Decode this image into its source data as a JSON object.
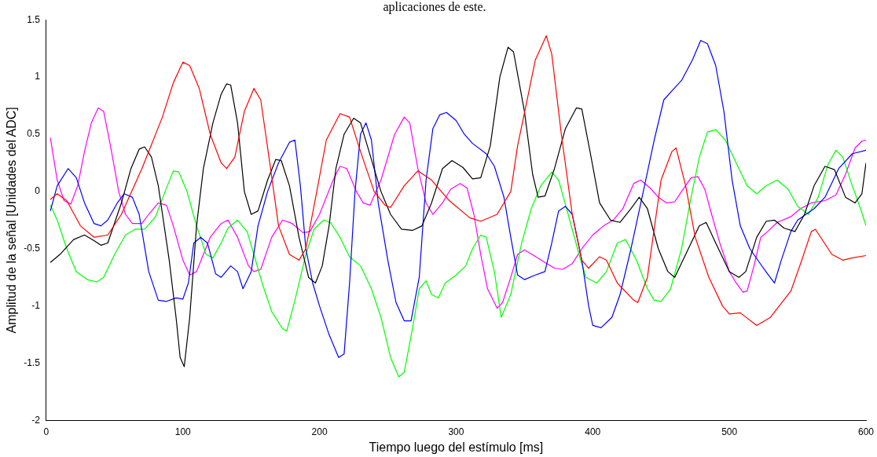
{
  "chart_data": {
    "type": "line",
    "title": "aplicaciones de este.",
    "xlabel": "Tiempo luego del estímulo [ms]",
    "ylabel": "Amplitud de la señal [Unidades del ADC]",
    "xlim": [
      0,
      600
    ],
    "xticks": [
      0,
      100,
      200,
      300,
      400,
      500,
      600
    ],
    "ylim": [
      -2,
      1.5
    ],
    "yticks": [
      -2,
      -1.5,
      -1,
      -0.5,
      0,
      0.5,
      1,
      1.5
    ],
    "grid": false,
    "legend": false,
    "marker": "none",
    "line_style": "solid",
    "series": [
      {
        "color": "#ff0000",
        "x": [
          3,
          8,
          15,
          25,
          35,
          45,
          55,
          70,
          85,
          93,
          100,
          105,
          112,
          120,
          128,
          132,
          138,
          145,
          152,
          157,
          163,
          170,
          178,
          185,
          190,
          198,
          205,
          215,
          222,
          230,
          240,
          248,
          252,
          262,
          272,
          282,
          295,
          310,
          318,
          330,
          340,
          345,
          352,
          358,
          366,
          370,
          377,
          385,
          392,
          397,
          405,
          410,
          418,
          430,
          433,
          440,
          450,
          458,
          461,
          468,
          475,
          485,
          495,
          500,
          508,
          520,
          530,
          545,
          553,
          560,
          563,
          575,
          583,
          590,
          600
        ],
        "values": [
          -0.07,
          -0.02,
          -0.08,
          -0.3,
          -0.4,
          -0.38,
          -0.2,
          0.2,
          0.65,
          0.95,
          1.13,
          1.1,
          0.9,
          0.5,
          0.25,
          0.2,
          0.3,
          0.7,
          0.9,
          0.8,
          0.3,
          -0.3,
          -0.55,
          -0.6,
          -0.5,
          0,
          0.45,
          0.68,
          0.65,
          0.35,
          0,
          -0.12,
          -0.14,
          0.05,
          0.18,
          0.1,
          -0.08,
          -0.23,
          -0.26,
          -0.2,
          0,
          0.4,
          0.8,
          1.15,
          1.36,
          1.2,
          0.5,
          -0.2,
          -0.6,
          -0.67,
          -0.57,
          -0.6,
          -0.8,
          -0.95,
          -0.97,
          -0.75,
          0.1,
          0.35,
          0.38,
          0.05,
          -0.4,
          -0.75,
          -1,
          -1.07,
          -1.06,
          -1.17,
          -1.1,
          -0.87,
          -0.6,
          -0.35,
          -0.33,
          -0.55,
          -0.6,
          -0.58,
          -0.56
        ]
      },
      {
        "color": "#000000",
        "x": [
          3,
          10,
          20,
          28,
          35,
          40,
          45,
          55,
          62,
          68,
          72,
          77,
          82,
          90,
          95,
          98,
          101,
          105,
          110,
          115,
          122,
          128,
          132,
          135,
          140,
          145,
          150,
          155,
          162,
          168,
          172,
          178,
          185,
          192,
          197,
          202,
          207,
          212,
          218,
          225,
          230,
          235,
          245,
          252,
          260,
          268,
          275,
          282,
          290,
          297,
          305,
          312,
          318,
          325,
          332,
          338,
          342,
          350,
          356,
          360,
          365,
          372,
          380,
          388,
          392,
          398,
          405,
          413,
          420,
          428,
          434,
          440,
          448,
          455,
          460,
          470,
          478,
          483,
          490,
          500,
          507,
          512,
          520,
          527,
          533,
          540,
          548,
          555,
          562,
          570,
          577,
          585,
          592,
          597,
          600
        ],
        "values": [
          -0.62,
          -0.55,
          -0.42,
          -0.38,
          -0.43,
          -0.47,
          -0.45,
          -0.1,
          0.2,
          0.37,
          0.39,
          0.3,
          0.05,
          -0.6,
          -1.1,
          -1.45,
          -1.53,
          -1.1,
          -0.3,
          0.2,
          0.6,
          0.85,
          0.94,
          0.93,
          0.6,
          0,
          -0.2,
          -0.17,
          0.1,
          0.28,
          0.27,
          0.05,
          -0.4,
          -0.75,
          -0.8,
          -0.65,
          -0.3,
          0.2,
          0.5,
          0.64,
          0.6,
          0.4,
          0,
          -0.2,
          -0.33,
          -0.34,
          -0.3,
          -0.1,
          0.2,
          0.27,
          0.21,
          0.11,
          0.12,
          0.4,
          1,
          1.26,
          1.22,
          0.7,
          0.15,
          -0.05,
          -0.04,
          0.2,
          0.55,
          0.73,
          0.72,
          0.35,
          -0.1,
          -0.25,
          -0.27,
          -0.15,
          -0.05,
          -0.15,
          -0.5,
          -0.7,
          -0.75,
          -0.5,
          -0.3,
          -0.27,
          -0.45,
          -0.7,
          -0.75,
          -0.7,
          -0.4,
          -0.26,
          -0.25,
          -0.32,
          -0.35,
          -0.2,
          0.05,
          0.22,
          0.19,
          -0.05,
          -0.1,
          -0.02,
          0.25
        ]
      },
      {
        "color": "#0000ff",
        "x": [
          3,
          8,
          16,
          22,
          28,
          35,
          40,
          45,
          52,
          57,
          63,
          68,
          75,
          82,
          88,
          95,
          100,
          104,
          108,
          113,
          118,
          124,
          128,
          135,
          140,
          144,
          150,
          155,
          162,
          170,
          178,
          182,
          186,
          190,
          195,
          200,
          207,
          214,
          218,
          222,
          226,
          230,
          234,
          238,
          243,
          250,
          256,
          262,
          267,
          273,
          278,
          283,
          288,
          293,
          300,
          306,
          312,
          322,
          328,
          335,
          340,
          345,
          350,
          358,
          365,
          370,
          375,
          380,
          385,
          392,
          397,
          400,
          406,
          414,
          420,
          428,
          437,
          445,
          452,
          458,
          465,
          473,
          479,
          484,
          490,
          496,
          502,
          508,
          515,
          522,
          528,
          533,
          538,
          545,
          550,
          556,
          562,
          570,
          580,
          590,
          600
        ],
        "values": [
          -0.17,
          0.05,
          0.2,
          0.12,
          -0.1,
          -0.28,
          -0.3,
          -0.25,
          -0.1,
          -0.02,
          -0.05,
          -0.2,
          -0.7,
          -0.95,
          -0.96,
          -0.93,
          -0.94,
          -0.8,
          -0.45,
          -0.4,
          -0.45,
          -0.72,
          -0.75,
          -0.65,
          -0.7,
          -0.85,
          -0.7,
          -0.3,
          0,
          0.25,
          0.43,
          0.45,
          0.05,
          -0.5,
          -0.8,
          -1,
          -1.25,
          -1.45,
          -1.42,
          -0.8,
          0,
          0.5,
          0.6,
          0.45,
          -0.1,
          -0.6,
          -0.97,
          -1.13,
          -1.13,
          -0.75,
          0.1,
          0.55,
          0.67,
          0.69,
          0.62,
          0.5,
          0.42,
          0.33,
          0.22,
          -0.05,
          -0.4,
          -0.73,
          -0.77,
          -0.73,
          -0.7,
          -0.45,
          -0.17,
          -0.13,
          -0.2,
          -0.6,
          -1,
          -1.17,
          -1.19,
          -1.1,
          -0.9,
          -0.5,
          0,
          0.45,
          0.8,
          0.88,
          0.97,
          1.15,
          1.32,
          1.29,
          1.1,
          0.7,
          0.1,
          -0.3,
          -0.5,
          -0.62,
          -0.72,
          -0.8,
          -0.6,
          -0.35,
          -0.25,
          -0.2,
          -0.15,
          -0.05,
          0.2,
          0.33,
          0.36
        ]
      },
      {
        "color": "#00ff00",
        "x": [
          3,
          8,
          15,
          22,
          30,
          37,
          42,
          50,
          58,
          65,
          72,
          80,
          87,
          93,
          97,
          103,
          110,
          117,
          122,
          128,
          133,
          140,
          147,
          152,
          158,
          165,
          173,
          176,
          182,
          190,
          196,
          203,
          208,
          215,
          222,
          230,
          238,
          245,
          252,
          258,
          262,
          268,
          273,
          278,
          282,
          287,
          292,
          300,
          307,
          312,
          318,
          322,
          328,
          333,
          340,
          348,
          355,
          362,
          370,
          375,
          382,
          390,
          395,
          403,
          410,
          418,
          424,
          432,
          440,
          445,
          450,
          457,
          465,
          472,
          478,
          484,
          490,
          497,
          505,
          513,
          520,
          527,
          535,
          543,
          550,
          558,
          565,
          572,
          578,
          583,
          590,
          596,
          600
        ],
        "values": [
          -0.12,
          -0.25,
          -0.5,
          -0.7,
          -0.77,
          -0.79,
          -0.75,
          -0.55,
          -0.38,
          -0.33,
          -0.33,
          -0.22,
          0,
          0.18,
          0.17,
          0,
          -0.3,
          -0.55,
          -0.58,
          -0.45,
          -0.32,
          -0.25,
          -0.35,
          -0.55,
          -0.8,
          -1.05,
          -1.2,
          -1.22,
          -0.95,
          -0.55,
          -0.33,
          -0.25,
          -0.27,
          -0.4,
          -0.57,
          -0.65,
          -0.85,
          -1.1,
          -1.45,
          -1.62,
          -1.58,
          -1.2,
          -0.85,
          -0.78,
          -0.9,
          -0.93,
          -0.8,
          -0.73,
          -0.65,
          -0.5,
          -0.38,
          -0.4,
          -0.7,
          -1.1,
          -0.9,
          -0.45,
          -0.15,
          0.05,
          0.17,
          0.1,
          -0.2,
          -0.55,
          -0.75,
          -0.8,
          -0.7,
          -0.45,
          -0.42,
          -0.6,
          -0.85,
          -0.95,
          -0.96,
          -0.85,
          -0.5,
          -0.05,
          0.3,
          0.52,
          0.54,
          0.45,
          0.25,
          0.05,
          -0.02,
          0.05,
          0.1,
          0.02,
          -0.13,
          -0.2,
          -0.05,
          0.23,
          0.36,
          0.3,
          0.05,
          -0.15,
          -0.3
        ]
      },
      {
        "color": "#ff00ff",
        "x": [
          3,
          8,
          13,
          18,
          23,
          28,
          33,
          38,
          42,
          47,
          53,
          58,
          63,
          70,
          75,
          82,
          88,
          93,
          100,
          105,
          110,
          115,
          120,
          128,
          133,
          140,
          148,
          152,
          157,
          165,
          173,
          180,
          188,
          193,
          200,
          210,
          215,
          220,
          227,
          232,
          237,
          245,
          255,
          262,
          266,
          272,
          278,
          283,
          290,
          296,
          303,
          308,
          313,
          318,
          323,
          330,
          334,
          340,
          345,
          350,
          357,
          365,
          372,
          378,
          385,
          392,
          400,
          408,
          415,
          422,
          430,
          435,
          442,
          448,
          454,
          460,
          465,
          472,
          477,
          482,
          487,
          493,
          500,
          505,
          510,
          513,
          518,
          523,
          528,
          535,
          545,
          552,
          560,
          570,
          578,
          585,
          592,
          597,
          600
        ],
        "values": [
          0.47,
          0.1,
          -0.08,
          -0.11,
          0.05,
          0.35,
          0.6,
          0.73,
          0.7,
          0.4,
          0,
          -0.2,
          -0.28,
          -0.28,
          -0.2,
          -0.1,
          -0.12,
          -0.3,
          -0.6,
          -0.73,
          -0.7,
          -0.55,
          -0.4,
          -0.28,
          -0.25,
          -0.4,
          -0.65,
          -0.7,
          -0.68,
          -0.4,
          -0.25,
          -0.28,
          -0.36,
          -0.35,
          -0.2,
          0.1,
          0.22,
          0.2,
          0,
          -0.1,
          -0.12,
          0.1,
          0.5,
          0.65,
          0.6,
          0.2,
          -0.1,
          -0.2,
          -0.1,
          0.02,
          0.07,
          0.03,
          -0.2,
          -0.55,
          -0.85,
          -1.02,
          -0.97,
          -0.75,
          -0.55,
          -0.51,
          -0.56,
          -0.62,
          -0.67,
          -0.68,
          -0.63,
          -0.5,
          -0.38,
          -0.3,
          -0.25,
          -0.15,
          0.07,
          0.1,
          0.03,
          -0.05,
          -0.1,
          -0.09,
          0,
          0.12,
          0.13,
          0.02,
          -0.2,
          -0.45,
          -0.7,
          -0.8,
          -0.88,
          -0.87,
          -0.65,
          -0.4,
          -0.35,
          -0.27,
          -0.22,
          -0.15,
          -0.1,
          -0.08,
          -0.03,
          0.15,
          0.38,
          0.44,
          0.45
        ]
      }
    ]
  }
}
